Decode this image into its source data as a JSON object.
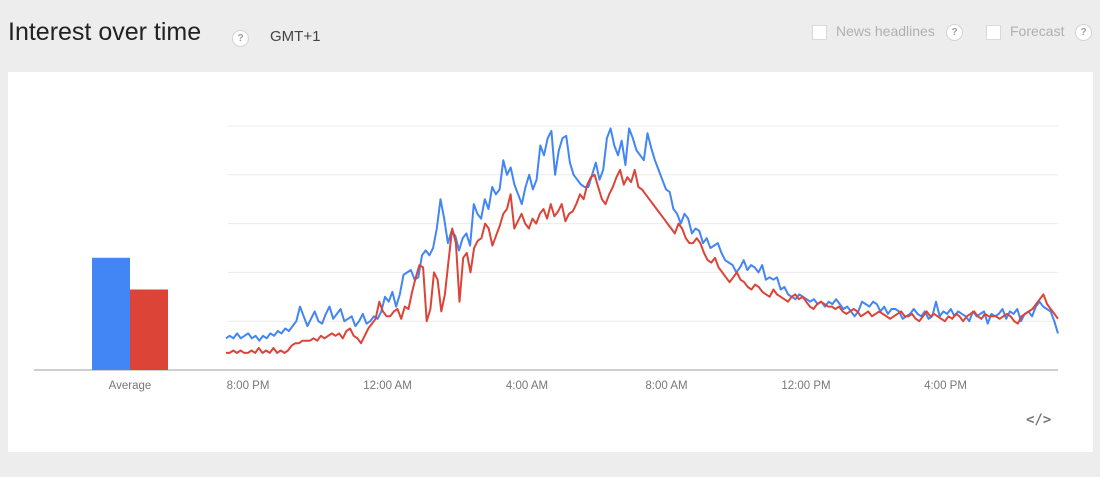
{
  "header": {
    "title": "Interest over time",
    "help_icon": "?",
    "timezone": "GMT+1",
    "options": [
      {
        "label": "News headlines",
        "checked": false
      },
      {
        "label": "Forecast",
        "checked": false
      }
    ]
  },
  "embed_icon": "code-icon",
  "chart_data": [
    {
      "type": "bar",
      "categories": [
        "Average"
      ],
      "series": [
        {
          "values": [
            46
          ],
          "color": "#4285f4"
        },
        {
          "values": [
            33
          ],
          "color": "#db4437"
        }
      ],
      "ylim": [
        0,
        100
      ]
    },
    {
      "type": "line",
      "x_ticks": [
        "8:00 PM",
        "12:00 AM",
        "4:00 AM",
        "8:00 AM",
        "12:00 PM",
        "4:00 PM"
      ],
      "x_range_hours": [
        0,
        24
      ],
      "ylim": [
        0,
        100
      ],
      "grid": true,
      "series": [
        {
          "color": "#4285f4",
          "values": [
            13,
            14,
            13,
            15,
            13,
            14,
            15,
            13,
            14,
            12,
            14,
            13,
            15,
            14,
            16,
            15,
            17,
            16,
            18,
            20,
            26,
            22,
            18,
            21,
            24,
            20,
            19,
            23,
            26,
            21,
            23,
            25,
            20,
            21,
            22,
            18,
            20,
            23,
            19,
            20,
            22,
            21,
            24,
            30,
            28,
            32,
            26,
            31,
            39,
            40,
            41,
            37,
            38,
            47,
            49,
            47,
            50,
            58,
            70,
            62,
            52,
            57,
            55,
            49,
            54,
            56,
            51,
            68,
            64,
            62,
            70,
            66,
            75,
            72,
            74,
            86,
            80,
            83,
            76,
            72,
            68,
            75,
            80,
            74,
            78,
            92,
            88,
            95,
            98,
            80,
            90,
            95,
            96,
            85,
            80,
            78,
            76,
            75,
            75,
            80,
            85,
            78,
            82,
            95,
            99,
            92,
            88,
            94,
            84,
            99,
            95,
            90,
            88,
            86,
            97,
            91,
            86,
            82,
            78,
            74,
            73,
            66,
            64,
            60,
            64,
            62,
            56,
            58,
            57,
            52,
            54,
            50,
            51,
            52,
            48,
            45,
            44,
            43,
            40,
            42,
            45,
            41,
            43,
            42,
            40,
            43,
            37,
            38,
            37,
            38,
            33,
            34,
            31,
            30,
            29,
            31,
            30,
            29,
            28,
            29,
            27,
            28,
            26,
            28,
            27,
            29,
            27,
            25,
            26,
            24,
            22,
            24,
            28,
            27,
            26,
            28,
            27,
            24,
            26,
            23,
            25,
            25,
            24,
            21,
            22,
            23,
            25,
            23,
            22,
            24,
            21,
            22,
            28,
            22,
            24,
            23,
            25,
            22,
            24,
            23,
            22,
            20,
            24,
            22,
            23,
            24,
            19,
            23,
            22,
            23,
            25,
            21,
            24,
            23,
            25,
            20,
            23,
            24,
            22,
            26,
            28,
            26,
            25,
            24,
            20,
            15
          ]
        },
        {
          "color": "#db4437",
          "values": [
            7,
            7,
            8,
            7,
            8,
            7,
            7,
            8,
            7,
            9,
            7,
            8,
            7,
            9,
            7,
            8,
            7,
            8,
            10,
            11,
            11,
            12,
            12,
            12,
            13,
            12,
            14,
            13,
            14,
            15,
            14,
            15,
            13,
            16,
            17,
            14,
            13,
            11,
            14,
            17,
            19,
            21,
            28,
            24,
            22,
            22,
            24,
            25,
            21,
            26,
            25,
            32,
            38,
            43,
            42,
            20,
            25,
            40,
            37,
            24,
            31,
            45,
            58,
            52,
            28,
            46,
            48,
            40,
            50,
            53,
            54,
            60,
            58,
            51,
            55,
            59,
            64,
            66,
            72,
            58,
            61,
            64,
            60,
            58,
            62,
            60,
            64,
            66,
            62,
            68,
            63,
            65,
            68,
            61,
            64,
            65,
            68,
            72,
            70,
            76,
            79,
            80,
            75,
            70,
            68,
            72,
            75,
            79,
            82,
            76,
            79,
            77,
            82,
            75,
            74,
            72,
            70,
            68,
            66,
            64,
            62,
            60,
            58,
            56,
            60,
            58,
            54,
            52,
            52,
            54,
            52,
            48,
            45,
            44,
            46,
            42,
            40,
            38,
            36,
            38,
            40,
            37,
            36,
            34,
            33,
            35,
            34,
            32,
            31,
            30,
            33,
            31,
            30,
            29,
            28,
            30,
            31,
            29,
            30,
            28,
            26,
            25,
            27,
            28,
            27,
            26,
            26,
            25,
            26,
            24,
            23,
            24,
            25,
            24,
            22,
            23,
            24,
            22,
            23,
            24,
            23,
            22,
            21,
            22,
            23,
            24,
            22,
            22,
            23,
            21,
            20,
            22,
            24,
            22,
            23,
            22,
            21,
            20,
            22,
            21,
            23,
            22,
            20,
            22,
            23,
            24,
            22,
            21,
            23,
            22,
            22,
            22,
            21,
            22,
            23,
            22,
            20,
            19,
            22,
            23,
            24,
            25,
            27,
            29,
            31,
            27,
            25,
            23,
            21
          ]
        }
      ]
    }
  ]
}
